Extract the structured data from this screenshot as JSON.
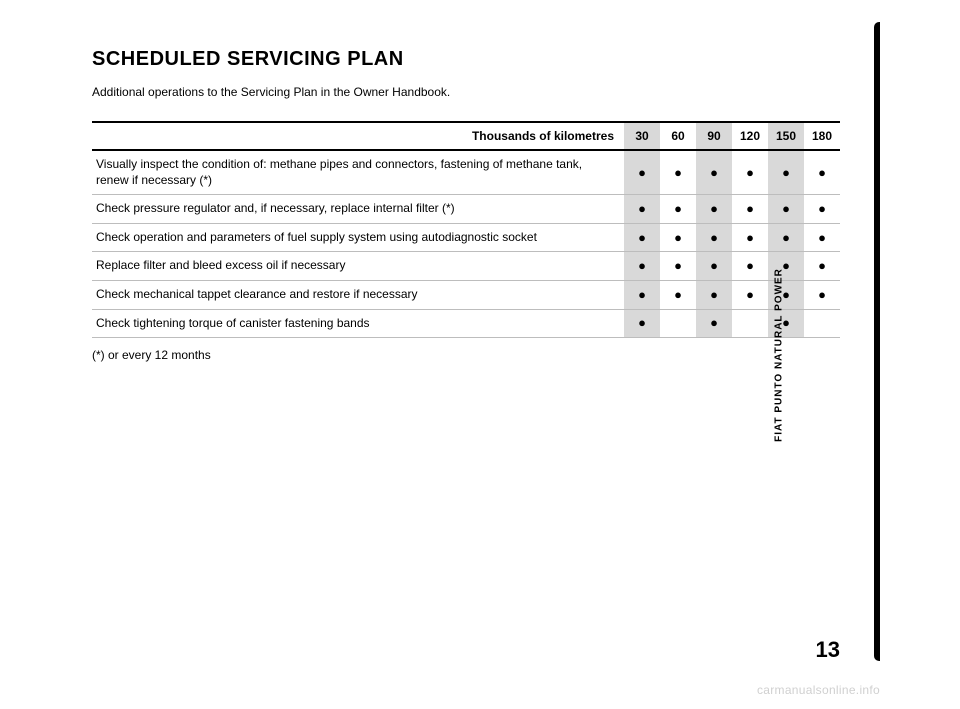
{
  "page": {
    "title": "SCHEDULED SERVICING PLAN",
    "subtitle": "Additional operations to the Servicing Plan in the Owner Handbook.",
    "side_label": "FIAT PUNTO NATURAL POWER",
    "page_number": "13",
    "watermark": "carmanualsonline.info",
    "footnote": "(*) or every 12 months"
  },
  "table": {
    "header_label": "Thousands of kilometres",
    "columns": [
      "30",
      "60",
      "90",
      "120",
      "150",
      "180"
    ],
    "dot_glyph": "●",
    "colors": {
      "column_stripe": "#d9d9d9",
      "row_border": "#bdbdbd",
      "header_border": "#000000",
      "text": "#000000",
      "background": "#ffffff"
    },
    "rows": [
      {
        "desc": "Visually inspect the condition of: methane pipes and connectors, fastening of methane tank, renew if necessary (*)",
        "marks": [
          true,
          true,
          true,
          true,
          true,
          true
        ]
      },
      {
        "desc": "Check pressure regulator and, if necessary, replace internal filter (*)",
        "marks": [
          true,
          true,
          true,
          true,
          true,
          true
        ]
      },
      {
        "desc": "Check operation and parameters of fuel supply system using autodiagnostic socket",
        "marks": [
          true,
          true,
          true,
          true,
          true,
          true
        ]
      },
      {
        "desc": "Replace filter and bleed excess oil if necessary",
        "marks": [
          true,
          true,
          true,
          true,
          true,
          true
        ]
      },
      {
        "desc": "Check mechanical tappet clearance and restore if necessary",
        "marks": [
          true,
          true,
          true,
          true,
          true,
          true
        ]
      },
      {
        "desc": "Check tightening torque of canister fastening bands",
        "marks": [
          true,
          false,
          true,
          false,
          true,
          false
        ]
      }
    ]
  }
}
